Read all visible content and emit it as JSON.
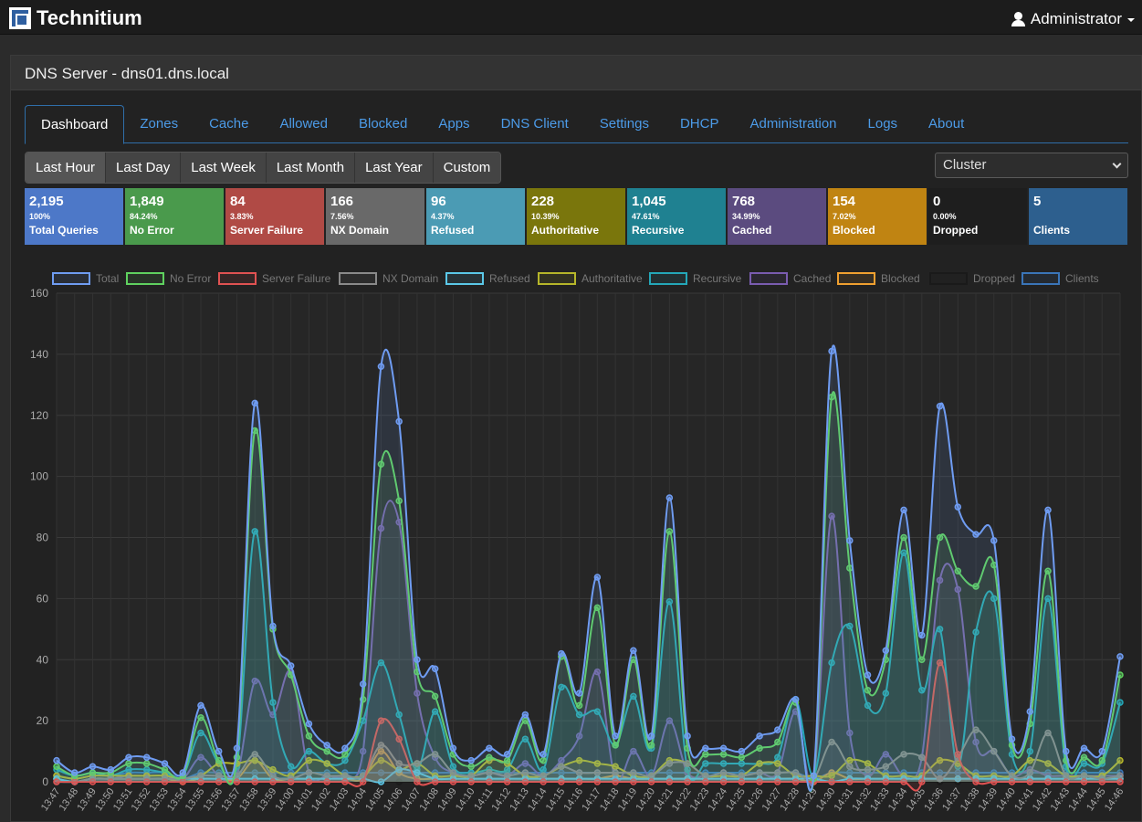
{
  "app": {
    "name": "Technitium",
    "user": "Administrator"
  },
  "panel": {
    "title": "DNS Server - dns01.dns.local"
  },
  "tabs": [
    "Dashboard",
    "Zones",
    "Cache",
    "Allowed",
    "Blocked",
    "Apps",
    "DNS Client",
    "Settings",
    "DHCP",
    "Administration",
    "Logs",
    "About"
  ],
  "ranges": [
    "Last Hour",
    "Last Day",
    "Last Week",
    "Last Month",
    "Last Year",
    "Custom"
  ],
  "cluster_select": "Cluster",
  "stats": [
    {
      "value": "2,195",
      "pct": "100%",
      "label": "Total Queries",
      "color": "#4d78c8"
    },
    {
      "value": "1,849",
      "pct": "84.24%",
      "label": "No Error",
      "color": "#4a9a4c"
    },
    {
      "value": "84",
      "pct": "3.83%",
      "label": "Server Failure",
      "color": "#b04a45"
    },
    {
      "value": "166",
      "pct": "7.56%",
      "label": "NX Domain",
      "color": "#696969"
    },
    {
      "value": "96",
      "pct": "4.37%",
      "label": "Refused",
      "color": "#4b9bb4"
    },
    {
      "value": "228",
      "pct": "10.39%",
      "label": "Authoritative",
      "color": "#7a760c"
    },
    {
      "value": "1,045",
      "pct": "47.61%",
      "label": "Recursive",
      "color": "#1f8191"
    },
    {
      "value": "768",
      "pct": "34.99%",
      "label": "Cached",
      "color": "#5b4b7f"
    },
    {
      "value": "154",
      "pct": "7.02%",
      "label": "Blocked",
      "color": "#c08412"
    },
    {
      "value": "0",
      "pct": "0.00%",
      "label": "Dropped",
      "color": "#1e1e1e"
    },
    {
      "value": "5",
      "pct": "",
      "label": "Clients",
      "color": "#2d5f8e"
    }
  ],
  "chart_data": {
    "type": "line",
    "ylim": [
      0,
      160
    ],
    "yticks": [
      0,
      20,
      40,
      60,
      80,
      100,
      120,
      140,
      160
    ],
    "grid": true,
    "legend": "top",
    "categories": [
      "13:47",
      "13:48",
      "13:49",
      "13:50",
      "13:51",
      "13:52",
      "13:53",
      "13:54",
      "13:55",
      "13:56",
      "13:57",
      "13:58",
      "13:59",
      "14:00",
      "14:01",
      "14:02",
      "14:03",
      "14:04",
      "14:05",
      "14:06",
      "14:07",
      "14:08",
      "14:09",
      "14:10",
      "14:11",
      "14:12",
      "14:13",
      "14:14",
      "14:15",
      "14:16",
      "14:17",
      "14:18",
      "14:19",
      "14:20",
      "14:21",
      "14:22",
      "14:23",
      "14:24",
      "14:25",
      "14:26",
      "14:27",
      "14:28",
      "14:29",
      "14:30",
      "14:31",
      "14:32",
      "14:33",
      "14:34",
      "14:35",
      "14:36",
      "14:37",
      "14:38",
      "14:39",
      "14:40",
      "14:41",
      "14:42",
      "14:43",
      "14:44",
      "14:45",
      "14:46"
    ],
    "series": [
      {
        "name": "Total",
        "color": "#6f9cf2",
        "values": [
          7,
          3,
          5,
          4,
          8,
          8,
          6,
          3,
          25,
          10,
          11,
          124,
          51,
          38,
          19,
          12,
          11,
          32,
          136,
          118,
          40,
          37,
          11,
          7,
          11,
          9,
          22,
          9,
          42,
          29,
          67,
          15,
          43,
          15,
          93,
          15,
          11,
          11,
          10,
          15,
          17,
          27,
          2,
          141,
          79,
          35,
          43,
          89,
          48,
          123,
          90,
          81,
          79,
          14,
          23,
          89,
          10,
          11,
          10,
          41
        ]
      },
      {
        "name": "No Error",
        "color": "#5fd15f",
        "values": [
          5,
          2,
          3,
          3,
          6,
          6,
          4,
          2,
          21,
          7,
          8,
          115,
          50,
          35,
          15,
          10,
          9,
          27,
          104,
          92,
          36,
          28,
          9,
          5,
          8,
          7,
          20,
          7,
          41,
          25,
          57,
          12,
          40,
          12,
          82,
          11,
          9,
          9,
          8,
          11,
          13,
          26,
          1,
          126,
          70,
          30,
          40,
          80,
          40,
          80,
          69,
          64,
          71,
          12,
          19,
          69,
          7,
          8,
          7,
          35
        ]
      },
      {
        "name": "Server Failure",
        "color": "#e05252",
        "values": [
          0,
          0,
          0,
          0,
          0,
          0,
          0,
          0,
          0,
          0,
          0,
          0,
          0,
          0,
          0,
          0,
          0,
          0,
          20,
          14,
          0,
          0,
          0,
          0,
          0,
          0,
          0,
          0,
          0,
          0,
          0,
          0,
          0,
          0,
          0,
          0,
          0,
          0,
          0,
          0,
          0,
          0,
          0,
          0,
          0,
          0,
          0,
          0,
          0,
          39,
          9,
          0,
          0,
          0,
          0,
          0,
          0,
          0,
          0,
          0
        ]
      },
      {
        "name": "NX Domain",
        "color": "#8a8a8a",
        "values": [
          0,
          0,
          1,
          1,
          1,
          1,
          1,
          1,
          2,
          2,
          2,
          9,
          2,
          1,
          3,
          2,
          2,
          2,
          12,
          6,
          6,
          9,
          3,
          2,
          3,
          2,
          3,
          2,
          5,
          3,
          3,
          3,
          3,
          2,
          6,
          6,
          2,
          3,
          2,
          3,
          3,
          3,
          1,
          13,
          5,
          4,
          5,
          9,
          8,
          1,
          8,
          17,
          10,
          2,
          3,
          16,
          2,
          2,
          1,
          2
        ]
      },
      {
        "name": "Refused",
        "color": "#5bc8e8",
        "values": [
          1,
          0,
          1,
          1,
          1,
          1,
          1,
          1,
          1,
          1,
          1,
          1,
          1,
          1,
          1,
          1,
          1,
          1,
          0,
          4,
          3,
          1,
          1,
          1,
          1,
          1,
          1,
          1,
          1,
          1,
          1,
          1,
          1,
          1,
          1,
          1,
          1,
          1,
          1,
          1,
          1,
          1,
          1,
          0,
          1,
          1,
          1,
          1,
          1,
          1,
          1,
          1,
          1,
          1,
          1,
          1,
          1,
          1,
          1,
          1
        ]
      },
      {
        "name": "Authoritative",
        "color": "#b6b62a",
        "values": [
          2,
          1,
          2,
          2,
          2,
          2,
          2,
          1,
          2,
          6,
          6,
          7,
          4,
          2,
          7,
          6,
          2,
          2,
          7,
          4,
          6,
          2,
          2,
          2,
          7,
          6,
          2,
          2,
          5,
          7,
          6,
          5,
          2,
          2,
          7,
          6,
          2,
          2,
          2,
          6,
          6,
          2,
          2,
          2,
          7,
          6,
          2,
          2,
          2,
          7,
          6,
          2,
          2,
          2,
          7,
          6,
          2,
          2,
          2,
          7
        ]
      },
      {
        "name": "Recursive",
        "color": "#24a7b8",
        "values": [
          4,
          2,
          3,
          2,
          4,
          4,
          3,
          2,
          16,
          6,
          5,
          82,
          26,
          5,
          10,
          6,
          7,
          20,
          39,
          22,
          4,
          23,
          5,
          3,
          4,
          4,
          14,
          4,
          31,
          22,
          23,
          12,
          28,
          11,
          59,
          4,
          6,
          6,
          6,
          6,
          8,
          27,
          2,
          39,
          51,
          25,
          29,
          75,
          30,
          50,
          5,
          49,
          60,
          9,
          10,
          60,
          5,
          6,
          6,
          26
        ]
      },
      {
        "name": "Cached",
        "color": "#7a5cb0",
        "values": [
          1,
          0,
          1,
          1,
          2,
          2,
          2,
          1,
          8,
          2,
          2,
          33,
          22,
          36,
          3,
          2,
          2,
          10,
          83,
          85,
          29,
          8,
          3,
          2,
          3,
          2,
          6,
          2,
          7,
          15,
          36,
          1,
          10,
          2,
          20,
          3,
          2,
          2,
          2,
          3,
          3,
          23,
          1,
          87,
          16,
          2,
          9,
          2,
          8,
          66,
          63,
          13,
          10,
          2,
          4,
          2,
          2,
          2,
          2,
          2
        ]
      },
      {
        "name": "Blocked",
        "color": "#f0a030",
        "values": [
          1,
          0,
          1,
          1,
          1,
          1,
          1,
          0,
          1,
          1,
          1,
          7,
          1,
          1,
          1,
          1,
          1,
          1,
          10,
          3,
          1,
          1,
          1,
          1,
          1,
          1,
          1,
          1,
          1,
          1,
          1,
          2,
          1,
          1,
          1,
          1,
          1,
          1,
          1,
          1,
          1,
          1,
          0,
          3,
          1,
          1,
          1,
          1,
          1,
          1,
          1,
          1,
          1,
          1,
          1,
          1,
          1,
          1,
          1,
          1
        ]
      },
      {
        "name": "Dropped",
        "color": "#1a1a1a",
        "values": [
          0,
          0,
          0,
          0,
          0,
          0,
          0,
          0,
          0,
          0,
          0,
          0,
          0,
          0,
          0,
          0,
          0,
          0,
          0,
          0,
          0,
          0,
          0,
          0,
          0,
          0,
          0,
          0,
          0,
          0,
          0,
          0,
          0,
          0,
          0,
          0,
          0,
          0,
          0,
          0,
          0,
          0,
          0,
          0,
          0,
          0,
          0,
          0,
          0,
          0,
          0,
          0,
          0,
          0,
          0,
          0,
          0,
          0,
          0,
          0
        ]
      },
      {
        "name": "Clients",
        "color": "#3a75b8",
        "values": [
          2,
          1,
          2,
          2,
          3,
          3,
          3,
          1,
          3,
          3,
          3,
          3,
          3,
          3,
          3,
          3,
          3,
          3,
          3,
          3,
          3,
          3,
          3,
          3,
          3,
          3,
          3,
          3,
          3,
          3,
          3,
          3,
          3,
          3,
          3,
          3,
          3,
          3,
          3,
          3,
          3,
          3,
          1,
          3,
          3,
          3,
          3,
          3,
          3,
          3,
          3,
          3,
          3,
          3,
          3,
          3,
          3,
          3,
          3,
          3
        ]
      }
    ]
  }
}
